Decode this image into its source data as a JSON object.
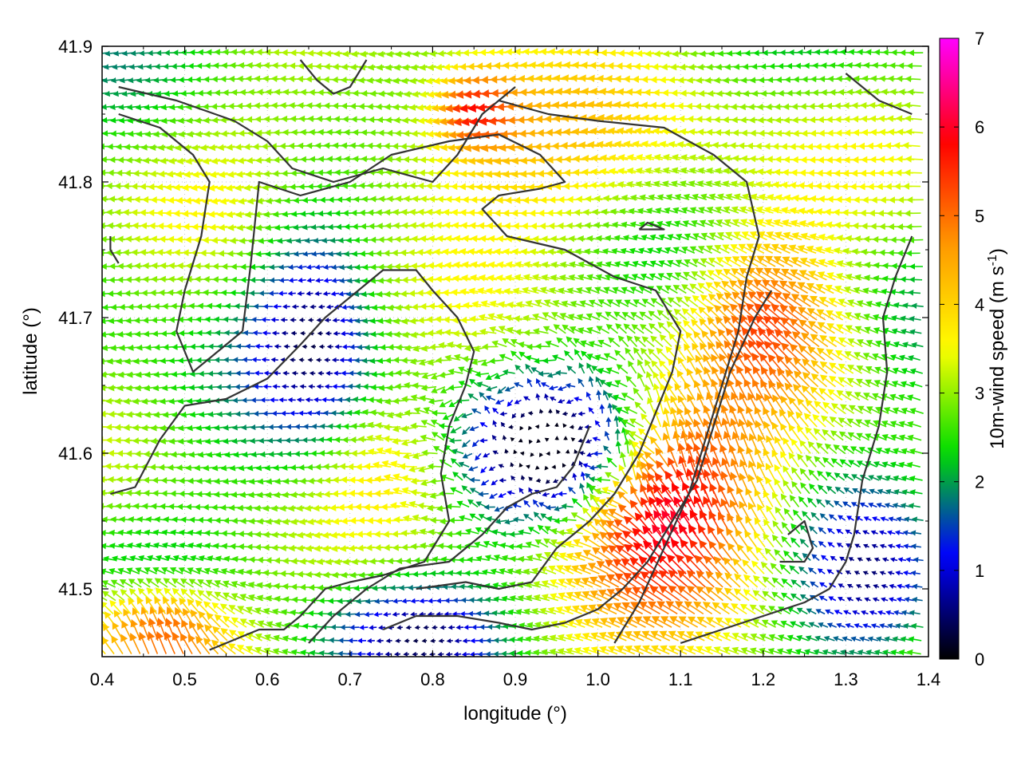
{
  "chart_data": {
    "type": "vector-field",
    "xlabel": "longitude (°)",
    "ylabel": "latitude (°)",
    "colorbar_label": "10m-wind speed (m s",
    "colorbar_label_sup": "-1",
    "colorbar_label_end": ")",
    "xlim": [
      0.4,
      1.4
    ],
    "ylim": [
      41.45,
      41.9
    ],
    "x_ticks": [
      "0.4",
      "0.5",
      "0.6",
      "0.7",
      "0.8",
      "0.9",
      "1.0",
      "1.1",
      "1.2",
      "1.3",
      "1.4"
    ],
    "y_ticks": [
      "41.5",
      "41.6",
      "41.7",
      "41.8",
      "41.9"
    ],
    "x_tick_values": [
      0.4,
      0.5,
      0.6,
      0.7,
      0.8,
      0.9,
      1.0,
      1.1,
      1.2,
      1.3,
      1.4
    ],
    "y_tick_values": [
      41.5,
      41.6,
      41.7,
      41.8,
      41.9
    ],
    "colorbar_range": [
      0,
      7
    ],
    "colorbar_ticks": [
      "0",
      "1",
      "2",
      "3",
      "4",
      "5",
      "6",
      "7"
    ],
    "colorbar_tick_values": [
      0,
      1,
      2,
      3,
      4,
      5,
      6,
      7
    ],
    "colormap": [
      "#000000",
      "#0000ff",
      "#00dd00",
      "#ffff00",
      "#ff9900",
      "#ff0000",
      "#ff00ff"
    ],
    "grid": true,
    "legend": "colorbar-right"
  }
}
